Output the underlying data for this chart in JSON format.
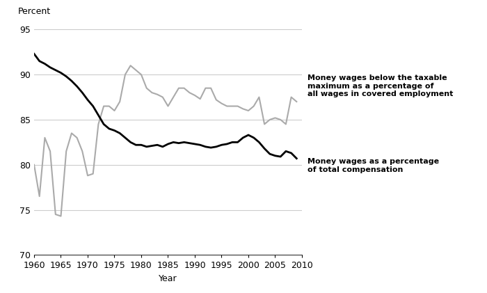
{
  "years_black": [
    1960,
    1961,
    1962,
    1963,
    1964,
    1965,
    1966,
    1967,
    1968,
    1969,
    1970,
    1971,
    1972,
    1973,
    1974,
    1975,
    1976,
    1977,
    1978,
    1979,
    1980,
    1981,
    1982,
    1983,
    1984,
    1985,
    1986,
    1987,
    1988,
    1989,
    1990,
    1991,
    1992,
    1993,
    1994,
    1995,
    1996,
    1997,
    1998,
    1999,
    2000,
    2001,
    2002,
    2003,
    2004,
    2005,
    2006,
    2007,
    2008,
    2009
  ],
  "values_black": [
    92.3,
    91.5,
    91.2,
    90.8,
    90.5,
    90.2,
    89.8,
    89.3,
    88.7,
    88.0,
    87.2,
    86.5,
    85.5,
    84.5,
    84.0,
    83.8,
    83.5,
    83.0,
    82.5,
    82.2,
    82.2,
    82.0,
    82.1,
    82.2,
    82.0,
    82.3,
    82.5,
    82.4,
    82.5,
    82.4,
    82.3,
    82.2,
    82.0,
    81.9,
    82.0,
    82.2,
    82.3,
    82.5,
    82.5,
    83.0,
    83.3,
    83.0,
    82.5,
    81.8,
    81.2,
    81.0,
    80.9,
    81.5,
    81.3,
    80.7
  ],
  "years_grey": [
    1960,
    1961,
    1962,
    1963,
    1964,
    1965,
    1966,
    1967,
    1968,
    1969,
    1970,
    1971,
    1972,
    1973,
    1974,
    1975,
    1976,
    1977,
    1978,
    1979,
    1980,
    1981,
    1982,
    1983,
    1984,
    1985,
    1986,
    1987,
    1988,
    1989,
    1990,
    1991,
    1992,
    1993,
    1994,
    1995,
    1996,
    1997,
    1998,
    1999,
    2000,
    2001,
    2002,
    2003,
    2004,
    2005,
    2006,
    2007,
    2008,
    2009
  ],
  "values_grey": [
    80.0,
    76.5,
    83.0,
    81.5,
    74.5,
    74.3,
    81.5,
    83.5,
    83.0,
    81.5,
    78.8,
    79.0,
    84.5,
    86.5,
    86.5,
    86.0,
    87.0,
    90.0,
    91.0,
    90.5,
    90.0,
    88.5,
    88.0,
    87.8,
    87.5,
    86.5,
    87.5,
    88.5,
    88.5,
    88.0,
    87.7,
    87.3,
    88.5,
    88.5,
    87.2,
    86.8,
    86.5,
    86.5,
    86.5,
    86.2,
    86.0,
    86.5,
    87.5,
    84.5,
    85.0,
    85.2,
    85.0,
    84.5,
    87.5,
    87.0
  ],
  "ylabel": "Percent",
  "xlabel": "Year",
  "ylim": [
    70,
    96
  ],
  "xlim": [
    1960,
    2010
  ],
  "yticks": [
    70,
    75,
    80,
    85,
    90,
    95
  ],
  "xticks": [
    1960,
    1965,
    1970,
    1975,
    1980,
    1985,
    1990,
    1995,
    2000,
    2005,
    2010
  ],
  "black_color": "#000000",
  "grey_color": "#aaaaaa",
  "label_grey": "Money wages below the taxable\nmaximum as a percentage of\nall wages in covered employment",
  "label_black": "Money wages as a percentage\nof total compensation",
  "bg_color": "#ffffff",
  "grid_color": "#cccccc"
}
